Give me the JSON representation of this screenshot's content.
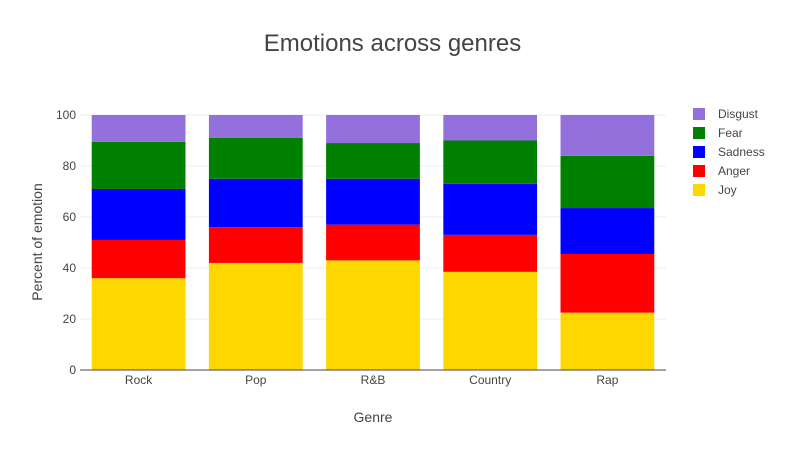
{
  "chart_data": {
    "type": "bar",
    "stacked": true,
    "title": "Emotions across genres",
    "xlabel": "Genre",
    "ylabel": "Percent of emotion",
    "categories": [
      "Rock",
      "Pop",
      "R&B",
      "Country",
      "Rap"
    ],
    "ylim": [
      0,
      100
    ],
    "yticks": [
      0,
      20,
      40,
      60,
      80,
      100
    ],
    "grid": true,
    "legend_position": "right",
    "series": [
      {
        "name": "Joy",
        "color": "#FFD700",
        "values": [
          36,
          42,
          43,
          38.5,
          22.5
        ]
      },
      {
        "name": "Anger",
        "color": "#FF0000",
        "values": [
          15,
          14,
          14,
          14.5,
          23
        ]
      },
      {
        "name": "Sadness",
        "color": "#0000FF",
        "values": [
          20,
          19,
          18,
          20,
          18
        ]
      },
      {
        "name": "Fear",
        "color": "#008000",
        "values": [
          18.5,
          16,
          14,
          17,
          20.5
        ]
      },
      {
        "name": "Disgust",
        "color": "#9370DB",
        "values": [
          10.5,
          9,
          11,
          10,
          16
        ]
      }
    ]
  }
}
